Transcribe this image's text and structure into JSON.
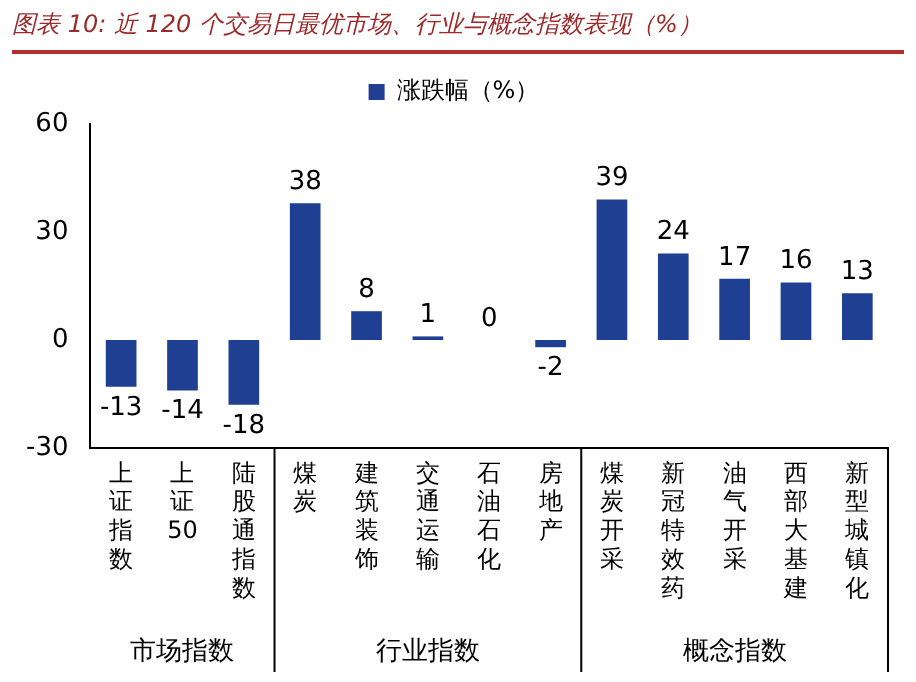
{
  "chart_data": {
    "type": "bar",
    "title": "图表 10: 近 120 个交易日最优市场、行业与概念指数表现（%）",
    "categories": [
      "上证指数",
      "上证50",
      "陆股通指数",
      "煤炭",
      "建筑装饰",
      "交通运输",
      "石油石化",
      "房地产",
      "煤炭开采",
      "新冠特效药",
      "油气开采",
      "西部大基建",
      "新型城镇化"
    ],
    "series": [
      {
        "name": "涨跌幅（%）",
        "color": "#1f3f93",
        "values": [
          -13,
          -14,
          -18,
          38,
          8,
          1,
          0,
          -2,
          39,
          24,
          17,
          16,
          13
        ]
      }
    ],
    "ylim": [
      -30,
      60
    ],
    "yticks": [
      -30,
      0,
      30,
      60
    ],
    "grid": false,
    "legend": "top",
    "data_labels": true,
    "annotations": [
      "市场指数",
      "行业指数",
      "概念指数"
    ]
  }
}
